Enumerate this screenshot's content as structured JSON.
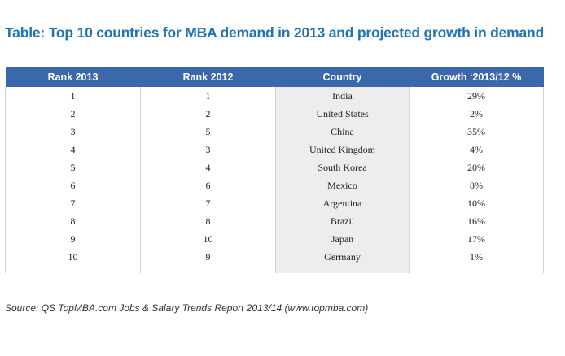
{
  "title": "Table: Top 10 countries for MBA demand in 2013 and projected growth in demand",
  "table": {
    "headers": [
      "Rank 2013",
      "Rank 2012",
      "Country",
      "Growth ‘2013/12 %"
    ],
    "rows": [
      [
        "1",
        "1",
        "India",
        "29%"
      ],
      [
        "2",
        "2",
        "United States",
        "2%"
      ],
      [
        "3",
        "5",
        "China",
        "35%"
      ],
      [
        "4",
        "3",
        "United Kingdom",
        "4%"
      ],
      [
        "5",
        "4",
        "South Korea",
        "20%"
      ],
      [
        "6",
        "6",
        "Mexico",
        "8%"
      ],
      [
        "7",
        "7",
        "Argentina",
        "10%"
      ],
      [
        "8",
        "8",
        "Brazil",
        "16%"
      ],
      [
        "9",
        "10",
        "Japan",
        "17%"
      ],
      [
        "10",
        "9",
        "Germany",
        "1%"
      ]
    ]
  },
  "source": "Source: QS TopMBA.com Jobs & Salary Trends Report 2013/14 (www.topmba.com)",
  "colors": {
    "title": "#1f74b8",
    "header_background": "#3a68ab",
    "header_text": "#ffffff",
    "country_column_shade": "#ededed",
    "rule": "#4d7bbd"
  }
}
